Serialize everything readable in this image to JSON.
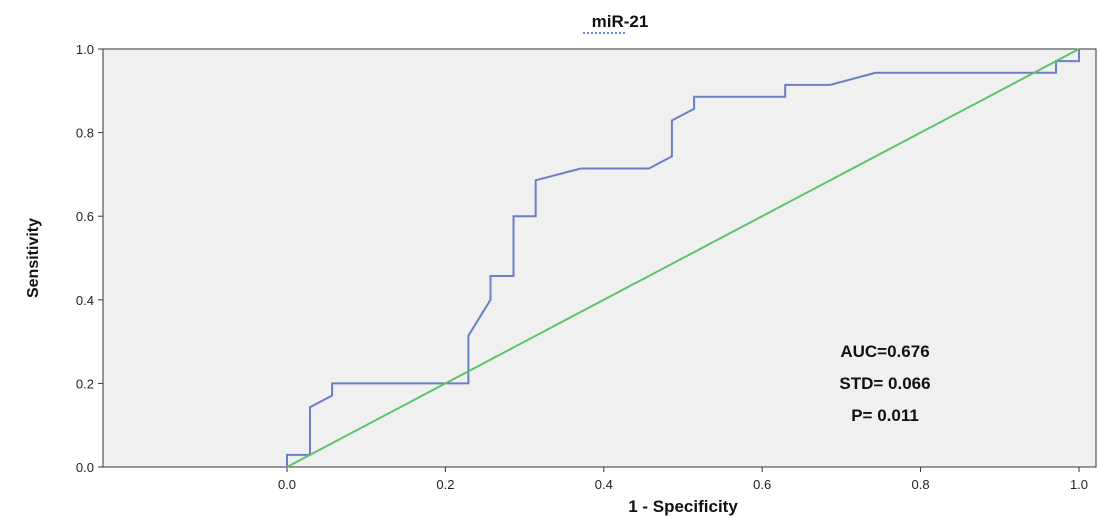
{
  "chart_data": {
    "type": "line",
    "title": "miR-21",
    "xlabel": "1 - Specificity",
    "ylabel": "Sensitivity",
    "xlim": [
      0,
      1
    ],
    "ylim": [
      0,
      1
    ],
    "x_ticks": [
      "0.0",
      "0.2",
      "0.4",
      "0.6",
      "0.8",
      "1.0"
    ],
    "y_ticks": [
      "0.0",
      "0.2",
      "0.4",
      "0.6",
      "0.8",
      "1.0"
    ],
    "grid": false,
    "background_color": "#f0f0f0",
    "series": [
      {
        "color": "#6b7fc6",
        "points": [
          [
            0.0,
            0.0
          ],
          [
            0.0,
            0.029
          ],
          [
            0.029,
            0.029
          ],
          [
            0.029,
            0.143
          ],
          [
            0.057,
            0.171
          ],
          [
            0.057,
            0.2
          ],
          [
            0.229,
            0.2
          ],
          [
            0.229,
            0.314
          ],
          [
            0.257,
            0.4
          ],
          [
            0.257,
            0.457
          ],
          [
            0.286,
            0.457
          ],
          [
            0.286,
            0.6
          ],
          [
            0.314,
            0.6
          ],
          [
            0.314,
            0.686
          ],
          [
            0.371,
            0.714
          ],
          [
            0.457,
            0.714
          ],
          [
            0.486,
            0.743
          ],
          [
            0.486,
            0.829
          ],
          [
            0.514,
            0.857
          ],
          [
            0.514,
            0.886
          ],
          [
            0.629,
            0.886
          ],
          [
            0.629,
            0.914
          ],
          [
            0.686,
            0.914
          ],
          [
            0.743,
            0.943
          ],
          [
            0.971,
            0.943
          ],
          [
            0.971,
            0.971
          ],
          [
            1.0,
            0.971
          ],
          [
            1.0,
            1.0
          ]
        ]
      },
      {
        "color": "#5cc46a",
        "points": [
          [
            0.0,
            0.0
          ],
          [
            1.0,
            1.0
          ]
        ]
      }
    ],
    "annotations": [
      "AUC=0.676",
      "STD= 0.066",
      "P= 0.011"
    ]
  }
}
